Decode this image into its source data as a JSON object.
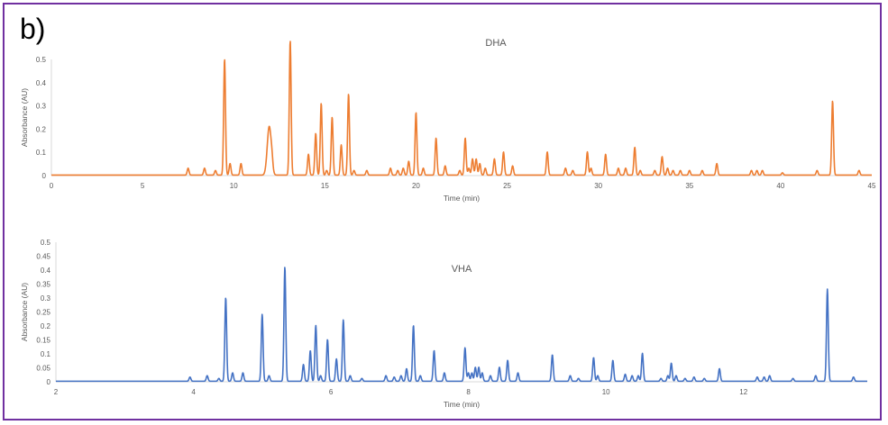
{
  "panel_label": "b)",
  "chart_data": [
    {
      "type": "line",
      "title": "DHA",
      "xlabel": "Time (min)",
      "ylabel": "Absorbance (AU)",
      "xlim": [
        0,
        45
      ],
      "ylim": [
        0,
        0.5
      ],
      "xticks": [
        "0",
        "5",
        "10",
        "15",
        "20",
        "25",
        "30",
        "35",
        "40",
        "45"
      ],
      "yticks": [
        "0",
        "0.1",
        "0.2",
        "0.3",
        "0.4",
        "0.5"
      ],
      "grid": false,
      "color": "#ed7d31",
      "series": [
        {
          "peaks": [
            {
              "t": 7.5,
              "h": 0.03
            },
            {
              "t": 8.4,
              "h": 0.03
            },
            {
              "t": 9.0,
              "h": 0.02
            },
            {
              "t": 9.5,
              "h": 0.5
            },
            {
              "t": 9.8,
              "h": 0.05
            },
            {
              "t": 10.4,
              "h": 0.05
            },
            {
              "t": 11.95,
              "h": 0.21
            },
            {
              "t": 12.1,
              "h": 0.03
            },
            {
              "t": 13.1,
              "h": 0.58
            },
            {
              "t": 14.1,
              "h": 0.09
            },
            {
              "t": 14.5,
              "h": 0.18
            },
            {
              "t": 14.8,
              "h": 0.31
            },
            {
              "t": 15.1,
              "h": 0.02
            },
            {
              "t": 15.4,
              "h": 0.25
            },
            {
              "t": 15.9,
              "h": 0.13
            },
            {
              "t": 16.3,
              "h": 0.35
            },
            {
              "t": 16.6,
              "h": 0.02
            },
            {
              "t": 17.3,
              "h": 0.02
            },
            {
              "t": 18.6,
              "h": 0.03
            },
            {
              "t": 19.0,
              "h": 0.02
            },
            {
              "t": 19.3,
              "h": 0.03
            },
            {
              "t": 19.6,
              "h": 0.06
            },
            {
              "t": 20.0,
              "h": 0.27
            },
            {
              "t": 20.4,
              "h": 0.03
            },
            {
              "t": 21.1,
              "h": 0.16
            },
            {
              "t": 21.6,
              "h": 0.04
            },
            {
              "t": 22.4,
              "h": 0.02
            },
            {
              "t": 22.7,
              "h": 0.16
            },
            {
              "t": 22.9,
              "h": 0.03
            },
            {
              "t": 23.1,
              "h": 0.07
            },
            {
              "t": 23.3,
              "h": 0.07
            },
            {
              "t": 23.5,
              "h": 0.05
            },
            {
              "t": 23.8,
              "h": 0.03
            },
            {
              "t": 24.3,
              "h": 0.07
            },
            {
              "t": 24.8,
              "h": 0.1
            },
            {
              "t": 25.3,
              "h": 0.04
            },
            {
              "t": 27.2,
              "h": 0.1
            },
            {
              "t": 28.2,
              "h": 0.03
            },
            {
              "t": 28.6,
              "h": 0.02
            },
            {
              "t": 29.4,
              "h": 0.1
            },
            {
              "t": 29.6,
              "h": 0.03
            },
            {
              "t": 30.4,
              "h": 0.09
            },
            {
              "t": 31.1,
              "h": 0.03
            },
            {
              "t": 31.5,
              "h": 0.03
            },
            {
              "t": 32.0,
              "h": 0.12
            },
            {
              "t": 32.3,
              "h": 0.02
            },
            {
              "t": 33.1,
              "h": 0.02
            },
            {
              "t": 33.5,
              "h": 0.08
            },
            {
              "t": 33.8,
              "h": 0.03
            },
            {
              "t": 34.1,
              "h": 0.02
            },
            {
              "t": 34.5,
              "h": 0.02
            },
            {
              "t": 35.0,
              "h": 0.02
            },
            {
              "t": 35.7,
              "h": 0.02
            },
            {
              "t": 36.5,
              "h": 0.05
            },
            {
              "t": 38.4,
              "h": 0.02
            },
            {
              "t": 38.7,
              "h": 0.02
            },
            {
              "t": 39.0,
              "h": 0.02
            },
            {
              "t": 40.1,
              "h": 0.01
            },
            {
              "t": 42.0,
              "h": 0.02
            },
            {
              "t": 42.85,
              "h": 0.32
            },
            {
              "t": 44.3,
              "h": 0.02
            }
          ]
        }
      ]
    },
    {
      "type": "line",
      "title": "VHA",
      "xlabel": "Time (min)",
      "ylabel": "Absorbance (AU)",
      "xlim": [
        2,
        13.8
      ],
      "ylim": [
        0,
        0.5
      ],
      "xticks": [
        "2",
        "4",
        "6",
        "8",
        "10",
        "12"
      ],
      "yticks": [
        "0",
        "0.05",
        "0.1",
        "0.15",
        "0.2",
        "0.25",
        "0.3",
        "0.35",
        "0.4",
        "0.45",
        "0.5"
      ],
      "grid": false,
      "color": "#4472c4",
      "series": [
        {
          "peaks": [
            {
              "t": 3.95,
              "h": 0.015
            },
            {
              "t": 4.2,
              "h": 0.02
            },
            {
              "t": 4.37,
              "h": 0.01
            },
            {
              "t": 4.47,
              "h": 0.3
            },
            {
              "t": 4.57,
              "h": 0.03
            },
            {
              "t": 4.72,
              "h": 0.03
            },
            {
              "t": 5.0,
              "h": 0.24
            },
            {
              "t": 5.1,
              "h": 0.02
            },
            {
              "t": 5.33,
              "h": 0.41
            },
            {
              "t": 5.6,
              "h": 0.06
            },
            {
              "t": 5.7,
              "h": 0.11
            },
            {
              "t": 5.78,
              "h": 0.2
            },
            {
              "t": 5.85,
              "h": 0.02
            },
            {
              "t": 5.95,
              "h": 0.15
            },
            {
              "t": 6.08,
              "h": 0.08
            },
            {
              "t": 6.18,
              "h": 0.22
            },
            {
              "t": 6.28,
              "h": 0.02
            },
            {
              "t": 6.45,
              "h": 0.01
            },
            {
              "t": 6.8,
              "h": 0.02
            },
            {
              "t": 6.92,
              "h": 0.015
            },
            {
              "t": 7.02,
              "h": 0.02
            },
            {
              "t": 7.1,
              "h": 0.045
            },
            {
              "t": 7.2,
              "h": 0.2
            },
            {
              "t": 7.3,
              "h": 0.02
            },
            {
              "t": 7.5,
              "h": 0.11
            },
            {
              "t": 7.65,
              "h": 0.03
            },
            {
              "t": 7.95,
              "h": 0.12
            },
            {
              "t": 8.0,
              "h": 0.03
            },
            {
              "t": 8.05,
              "h": 0.03
            },
            {
              "t": 8.1,
              "h": 0.05
            },
            {
              "t": 8.15,
              "h": 0.05
            },
            {
              "t": 8.2,
              "h": 0.03
            },
            {
              "t": 8.32,
              "h": 0.02
            },
            {
              "t": 8.45,
              "h": 0.05
            },
            {
              "t": 8.57,
              "h": 0.075
            },
            {
              "t": 8.72,
              "h": 0.03
            },
            {
              "t": 9.22,
              "h": 0.095
            },
            {
              "t": 9.48,
              "h": 0.02
            },
            {
              "t": 9.6,
              "h": 0.01
            },
            {
              "t": 9.82,
              "h": 0.085
            },
            {
              "t": 9.88,
              "h": 0.02
            },
            {
              "t": 10.1,
              "h": 0.075
            },
            {
              "t": 10.28,
              "h": 0.025
            },
            {
              "t": 10.38,
              "h": 0.02
            },
            {
              "t": 10.47,
              "h": 0.02
            },
            {
              "t": 10.53,
              "h": 0.1
            },
            {
              "t": 10.8,
              "h": 0.01
            },
            {
              "t": 10.9,
              "h": 0.02
            },
            {
              "t": 10.95,
              "h": 0.065
            },
            {
              "t": 11.02,
              "h": 0.02
            },
            {
              "t": 11.15,
              "h": 0.01
            },
            {
              "t": 11.28,
              "h": 0.015
            },
            {
              "t": 11.43,
              "h": 0.01
            },
            {
              "t": 11.65,
              "h": 0.045
            },
            {
              "t": 12.2,
              "h": 0.015
            },
            {
              "t": 12.3,
              "h": 0.015
            },
            {
              "t": 12.38,
              "h": 0.02
            },
            {
              "t": 12.72,
              "h": 0.01
            },
            {
              "t": 13.05,
              "h": 0.02
            },
            {
              "t": 13.22,
              "h": 0.33
            },
            {
              "t": 13.6,
              "h": 0.015
            }
          ]
        }
      ]
    }
  ]
}
